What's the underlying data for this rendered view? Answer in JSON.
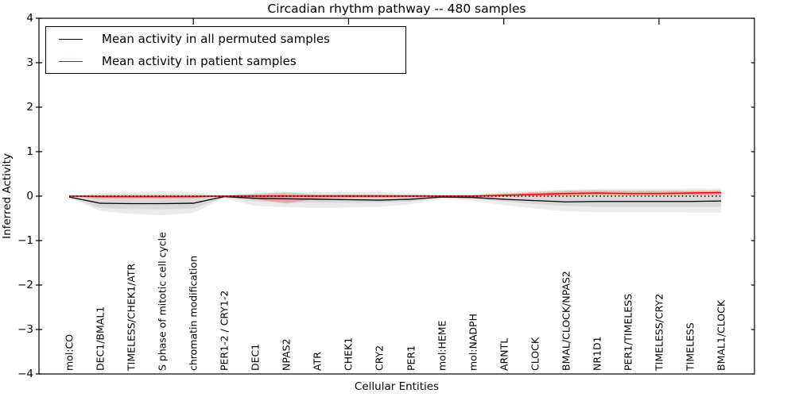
{
  "figure": {
    "kind": "matplotlib-style line plot with uncertainty bands"
  },
  "chart_data": {
    "type": "line",
    "title": "Circadian rhythm pathway -- 480 samples",
    "xlabel": "Cellular Entities",
    "ylabel": "Inferred Activity",
    "ylim": [
      -4,
      4
    ],
    "yticks": [
      -4,
      -3,
      -2,
      -1,
      0,
      1,
      2,
      3,
      4
    ],
    "grid": false,
    "legend_position": "upper left",
    "top_tick_indices": [
      4,
      9,
      14,
      19
    ],
    "categories": [
      "mol:CO",
      "DEC1/BMAL1",
      "TIMELESS/CHEK1/ATR",
      "S phase of mitotic cell cycle",
      "chromatin modification",
      "PER1-2 / CRY1-2",
      "DEC1",
      "NPAS2",
      "ATR",
      "CHEK1",
      "CRY2",
      "PER1",
      "mol:HEME",
      "mol:NADPH",
      "ARNTL",
      "CLOCK",
      "BMAL/CLOCK/NPAS2",
      "NR1D1",
      "PER1/TIMELESS",
      "TIMELESS/CRY2",
      "TIMELESS",
      "BMAL1/CLOCK"
    ],
    "series": [
      {
        "name": "Mean activity in all permuted samples",
        "color": "#000000",
        "band_color": "rgba(0,0,0,0.08)",
        "values": [
          -0.02,
          -0.16,
          -0.17,
          -0.17,
          -0.16,
          -0.01,
          -0.05,
          -0.06,
          -0.07,
          -0.08,
          -0.09,
          -0.07,
          -0.02,
          -0.03,
          -0.07,
          -0.1,
          -0.13,
          -0.12,
          -0.12,
          -0.12,
          -0.12,
          -0.11
        ],
        "band_hi": [
          0.01,
          0.07,
          0.09,
          0.1,
          0.09,
          0.02,
          0.08,
          0.1,
          0.09,
          0.09,
          0.09,
          0.07,
          0.03,
          0.05,
          0.09,
          0.12,
          0.15,
          0.16,
          0.16,
          0.16,
          0.17,
          0.17
        ],
        "band_lo": [
          -0.04,
          -0.33,
          -0.4,
          -0.43,
          -0.38,
          -0.05,
          -0.22,
          -0.25,
          -0.27,
          -0.26,
          -0.24,
          -0.18,
          -0.07,
          -0.1,
          -0.2,
          -0.28,
          -0.34,
          -0.36,
          -0.36,
          -0.36,
          -0.37,
          -0.37
        ],
        "inner_hi": [
          0.0,
          0.02,
          0.02,
          0.02,
          0.02,
          0.01,
          0.03,
          0.03,
          0.03,
          0.03,
          0.03,
          0.02,
          0.01,
          0.02,
          0.03,
          0.04,
          0.05,
          0.05,
          0.05,
          0.05,
          0.05,
          0.05
        ],
        "inner_lo": [
          -0.02,
          -0.27,
          -0.29,
          -0.3,
          -0.28,
          -0.03,
          -0.12,
          -0.14,
          -0.15,
          -0.15,
          -0.15,
          -0.12,
          -0.04,
          -0.06,
          -0.12,
          -0.18,
          -0.22,
          -0.24,
          -0.24,
          -0.24,
          -0.24,
          -0.24
        ]
      },
      {
        "name": "Mean activity in patient samples",
        "color": "#ff0000",
        "band_color": "rgba(255,0,0,0.22)",
        "values": [
          0.0,
          -0.01,
          -0.01,
          -0.01,
          -0.01,
          0.0,
          0.0,
          0.0,
          0.0,
          0.0,
          0.0,
          0.0,
          0.0,
          0.0,
          0.02,
          0.04,
          0.06,
          0.07,
          0.06,
          0.06,
          0.07,
          0.08
        ],
        "band_hi": [
          0.01,
          0.03,
          0.03,
          0.03,
          0.03,
          0.01,
          0.05,
          0.08,
          0.04,
          0.04,
          0.04,
          0.03,
          0.02,
          0.02,
          0.06,
          0.09,
          0.12,
          0.13,
          0.12,
          0.12,
          0.12,
          0.13
        ],
        "band_lo": [
          -0.01,
          -0.05,
          -0.05,
          -0.05,
          -0.04,
          -0.01,
          -0.07,
          -0.17,
          -0.05,
          -0.04,
          -0.04,
          -0.03,
          -0.02,
          -0.03,
          -0.01,
          0.0,
          0.01,
          0.02,
          0.02,
          0.02,
          0.02,
          0.03
        ]
      }
    ],
    "reference_line": {
      "y": 0,
      "style": "dotted",
      "color": "#000000"
    }
  }
}
